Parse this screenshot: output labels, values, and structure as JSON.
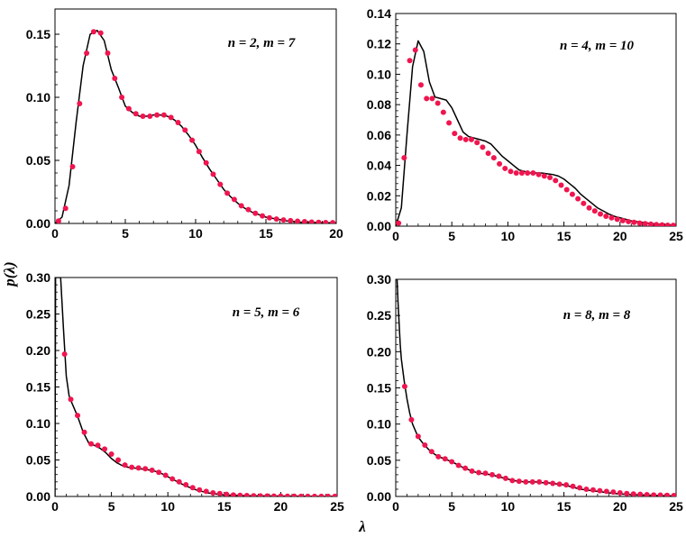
{
  "ylabel": "p(λ)",
  "xlabel": "λ",
  "colors": {
    "curve": "#000000",
    "points": "#f0154f",
    "frame": "#000000"
  },
  "chart_data": [
    {
      "type": "line",
      "annotation": "n = 2, m = 7",
      "xlim": [
        0,
        20
      ],
      "ylim": [
        0,
        0.17
      ],
      "xticks": [
        "0",
        "5",
        "10",
        "15",
        "20"
      ],
      "yticks": [
        "0.00",
        "0.05",
        "0.10",
        "0.15"
      ],
      "series": [
        {
          "kind": "curve",
          "x": [
            0,
            0.5,
            1,
            1.5,
            2,
            2.5,
            3,
            3.5,
            4,
            4.5,
            5,
            5.5,
            6,
            6.5,
            7,
            7.5,
            8,
            8.5,
            9,
            9.5,
            10,
            10.5,
            11,
            11.5,
            12,
            12.5,
            13,
            13.5,
            14,
            14.5,
            15,
            15.5,
            16,
            16.5,
            17,
            17.5,
            18,
            18.5,
            19,
            19.5,
            20
          ],
          "y": [
            0,
            0.005,
            0.03,
            0.08,
            0.125,
            0.15,
            0.153,
            0.145,
            0.122,
            0.108,
            0.093,
            0.088,
            0.085,
            0.085,
            0.086,
            0.086,
            0.085,
            0.082,
            0.077,
            0.07,
            0.062,
            0.052,
            0.043,
            0.035,
            0.027,
            0.021,
            0.016,
            0.012,
            0.009,
            0.007,
            0.005,
            0.004,
            0.003,
            0.002,
            0.0015,
            0.001,
            0.001,
            0.0008,
            0.0006,
            0.0005,
            0.0004
          ]
        },
        {
          "kind": "points",
          "x": [
            0.25,
            0.75,
            1.25,
            1.75,
            2.25,
            2.75,
            3.25,
            3.75,
            4.25,
            4.75,
            5.25,
            5.75,
            6.25,
            6.75,
            7.25,
            7.75,
            8.25,
            8.75,
            9.25,
            9.75,
            10.25,
            10.75,
            11.25,
            11.75,
            12.25,
            12.75,
            13.25,
            13.75,
            14.25,
            14.75,
            15.25,
            15.75,
            16.25,
            16.75,
            17.25,
            17.75,
            18.25,
            18.75,
            19.25,
            19.75
          ],
          "y": [
            0.002,
            0.012,
            0.045,
            0.095,
            0.135,
            0.152,
            0.151,
            0.135,
            0.115,
            0.1,
            0.091,
            0.087,
            0.085,
            0.085,
            0.086,
            0.086,
            0.084,
            0.08,
            0.074,
            0.066,
            0.057,
            0.048,
            0.039,
            0.031,
            0.024,
            0.019,
            0.014,
            0.011,
            0.008,
            0.006,
            0.0045,
            0.0035,
            0.0028,
            0.0022,
            0.0018,
            0.0014,
            0.0011,
            0.0009,
            0.0007,
            0.0006
          ]
        }
      ]
    },
    {
      "type": "line",
      "annotation": "n = 4, m = 10",
      "xlim": [
        0,
        25
      ],
      "ylim": [
        0,
        0.14
      ],
      "xticks": [
        "0",
        "5",
        "10",
        "15",
        "20",
        "25"
      ],
      "yticks": [
        "0.00",
        "0.02",
        "0.04",
        "0.06",
        "0.08",
        "0.10",
        "0.12",
        "0.14"
      ],
      "series": [
        {
          "kind": "curve",
          "x": [
            0,
            0.5,
            1,
            1.5,
            2,
            2.5,
            3,
            3.5,
            4,
            4.5,
            5,
            5.5,
            6,
            6.5,
            7,
            7.5,
            8,
            8.5,
            9,
            9.5,
            10,
            10.5,
            11,
            11.5,
            12,
            12.5,
            13,
            13.5,
            14,
            14.5,
            15,
            15.5,
            16,
            16.5,
            17,
            17.5,
            18,
            18.5,
            19,
            19.5,
            20,
            20.5,
            21,
            21.5,
            22,
            22.5,
            23,
            23.5,
            24,
            24.5,
            25
          ],
          "y": [
            0,
            0.012,
            0.06,
            0.105,
            0.122,
            0.115,
            0.095,
            0.085,
            0.084,
            0.083,
            0.078,
            0.07,
            0.062,
            0.059,
            0.058,
            0.057,
            0.056,
            0.054,
            0.05,
            0.046,
            0.043,
            0.04,
            0.037,
            0.036,
            0.035,
            0.035,
            0.035,
            0.0345,
            0.034,
            0.033,
            0.031,
            0.028,
            0.025,
            0.021,
            0.018,
            0.015,
            0.012,
            0.01,
            0.008,
            0.0065,
            0.0055,
            0.0045,
            0.0035,
            0.003,
            0.0025,
            0.002,
            0.0016,
            0.0013,
            0.001,
            0.0008,
            0.0006
          ]
        },
        {
          "kind": "points",
          "x": [
            0.25,
            0.75,
            1.25,
            1.75,
            2.25,
            2.75,
            3.25,
            3.75,
            4.25,
            4.75,
            5.25,
            5.75,
            6.25,
            6.75,
            7.25,
            7.75,
            8.25,
            8.75,
            9.25,
            9.75,
            10.25,
            10.75,
            11.25,
            11.75,
            12.25,
            12.75,
            13.25,
            13.75,
            14.25,
            14.75,
            15.25,
            15.75,
            16.25,
            16.75,
            17.25,
            17.75,
            18.25,
            18.75,
            19.25,
            19.75,
            20.25,
            20.75,
            21.25,
            21.75,
            22.25,
            22.75,
            23.25,
            23.75,
            24.25,
            24.75
          ],
          "y": [
            0.002,
            0.045,
            0.109,
            0.116,
            0.093,
            0.084,
            0.084,
            0.081,
            0.075,
            0.068,
            0.061,
            0.058,
            0.057,
            0.057,
            0.055,
            0.052,
            0.048,
            0.045,
            0.041,
            0.038,
            0.036,
            0.035,
            0.035,
            0.035,
            0.035,
            0.034,
            0.033,
            0.032,
            0.03,
            0.027,
            0.024,
            0.021,
            0.018,
            0.015,
            0.012,
            0.01,
            0.008,
            0.0065,
            0.0055,
            0.0045,
            0.0036,
            0.003,
            0.0025,
            0.002,
            0.0016,
            0.0013,
            0.001,
            0.0008,
            0.0006,
            0.0005
          ]
        }
      ]
    },
    {
      "type": "line",
      "annotation": "n = 5, m = 6",
      "xlim": [
        0,
        25
      ],
      "ylim": [
        0,
        0.3
      ],
      "xticks": [
        "0",
        "5",
        "10",
        "15",
        "20",
        "25"
      ],
      "yticks": [
        "0.00",
        "0.05",
        "0.10",
        "0.15",
        "0.20",
        "0.25",
        "0.30"
      ],
      "series": [
        {
          "kind": "curve",
          "x": [
            0,
            0.05,
            0.1,
            0.2,
            0.3,
            0.5,
            0.75,
            1,
            1.25,
            1.5,
            2,
            2.5,
            3,
            3.5,
            4,
            4.5,
            5,
            5.5,
            6,
            6.5,
            7,
            7.5,
            8,
            8.5,
            9,
            9.5,
            10,
            10.5,
            11,
            11.5,
            12,
            12.5,
            13,
            13.5,
            14,
            14.5,
            15,
            16,
            17,
            18,
            19,
            20,
            21,
            22,
            23,
            24,
            25
          ],
          "y": [
            0,
            0.3,
            0.3,
            0.3,
            0.3,
            0.3,
            0.23,
            0.165,
            0.138,
            0.128,
            0.11,
            0.088,
            0.073,
            0.07,
            0.066,
            0.06,
            0.052,
            0.046,
            0.042,
            0.04,
            0.039,
            0.038,
            0.037,
            0.036,
            0.034,
            0.031,
            0.027,
            0.023,
            0.019,
            0.015,
            0.012,
            0.009,
            0.007,
            0.005,
            0.004,
            0.003,
            0.002,
            0.0015,
            0.001,
            0.0008,
            0.0006,
            0.0005,
            0.0004,
            0.0003,
            0.0002,
            0.0002,
            0.0001
          ]
        },
        {
          "kind": "points",
          "x": [
            0.85,
            1.4,
            2.0,
            2.6,
            3.2,
            3.8,
            4.4,
            5.0,
            5.6,
            6.2,
            6.8,
            7.4,
            8.0,
            8.6,
            9.2,
            9.8,
            10.4,
            11.0,
            11.6,
            12.2,
            12.8,
            13.4,
            14.0,
            14.6,
            15.2,
            15.8,
            16.4,
            17.0,
            17.6,
            18.2,
            18.8,
            19.4,
            20.0,
            20.6,
            21.2,
            21.8,
            22.4,
            23.0,
            23.6,
            24.2,
            24.8
          ],
          "y": [
            0.195,
            0.133,
            0.111,
            0.088,
            0.072,
            0.07,
            0.065,
            0.058,
            0.05,
            0.043,
            0.04,
            0.039,
            0.038,
            0.036,
            0.033,
            0.029,
            0.024,
            0.02,
            0.016,
            0.012,
            0.009,
            0.007,
            0.005,
            0.004,
            0.003,
            0.002,
            0.0015,
            0.0012,
            0.001,
            0.0008,
            0.0006,
            0.0005,
            0.0004,
            0.0003,
            0.0003,
            0.0002,
            0.0002,
            0.0002,
            0.0001,
            0.0001,
            0.0001
          ]
        }
      ]
    },
    {
      "type": "line",
      "annotation": "n = 8, m = 8",
      "xlim": [
        0,
        25
      ],
      "ylim": [
        0,
        0.3
      ],
      "xticks": [
        "0",
        "5",
        "10",
        "15",
        "20",
        "25"
      ],
      "yticks": [
        "0.00",
        "0.05",
        "0.10",
        "0.15",
        "0.20",
        "0.25",
        "0.30"
      ],
      "series": [
        {
          "kind": "curve",
          "x": [
            0.12,
            0.2,
            0.3,
            0.4,
            0.5,
            0.75,
            1,
            1.25,
            1.5,
            2,
            2.5,
            3,
            3.5,
            4,
            4.5,
            5,
            5.5,
            6,
            6.5,
            7,
            7.5,
            8,
            8.5,
            9,
            9.5,
            10,
            10.5,
            11,
            11.5,
            12,
            12.5,
            13,
            13.5,
            14,
            14.5,
            15,
            15.5,
            16,
            16.5,
            17,
            17.5,
            18,
            18.5,
            19,
            19.5,
            20,
            21,
            22,
            23,
            24,
            25
          ],
          "y": [
            0.3,
            0.27,
            0.24,
            0.21,
            0.19,
            0.16,
            0.135,
            0.115,
            0.1,
            0.082,
            0.072,
            0.064,
            0.058,
            0.054,
            0.051,
            0.048,
            0.044,
            0.04,
            0.037,
            0.034,
            0.032,
            0.031,
            0.03,
            0.028,
            0.026,
            0.024,
            0.022,
            0.021,
            0.02,
            0.02,
            0.02,
            0.019,
            0.019,
            0.018,
            0.017,
            0.016,
            0.014,
            0.012,
            0.01,
            0.009,
            0.008,
            0.007,
            0.006,
            0.005,
            0.004,
            0.0035,
            0.0025,
            0.002,
            0.0015,
            0.001,
            0.0008
          ]
        },
        {
          "kind": "points",
          "x": [
            0.8,
            1.4,
            2.0,
            2.6,
            3.2,
            3.8,
            4.4,
            5.0,
            5.6,
            6.2,
            6.8,
            7.4,
            8.0,
            8.6,
            9.2,
            9.8,
            10.4,
            11.0,
            11.6,
            12.2,
            12.8,
            13.4,
            14.0,
            14.6,
            15.2,
            15.8,
            16.4,
            17.0,
            17.6,
            18.2,
            18.8,
            19.4,
            20.0,
            20.6,
            21.2,
            21.8,
            22.4,
            23.0,
            23.6,
            24.2,
            24.8
          ],
          "y": [
            0.152,
            0.106,
            0.083,
            0.071,
            0.062,
            0.055,
            0.052,
            0.048,
            0.043,
            0.039,
            0.035,
            0.033,
            0.032,
            0.03,
            0.028,
            0.025,
            0.022,
            0.021,
            0.02,
            0.02,
            0.02,
            0.019,
            0.018,
            0.017,
            0.016,
            0.014,
            0.012,
            0.01,
            0.009,
            0.008,
            0.007,
            0.006,
            0.005,
            0.004,
            0.0035,
            0.003,
            0.0025,
            0.002,
            0.0018,
            0.0015,
            0.0012
          ]
        }
      ]
    }
  ]
}
